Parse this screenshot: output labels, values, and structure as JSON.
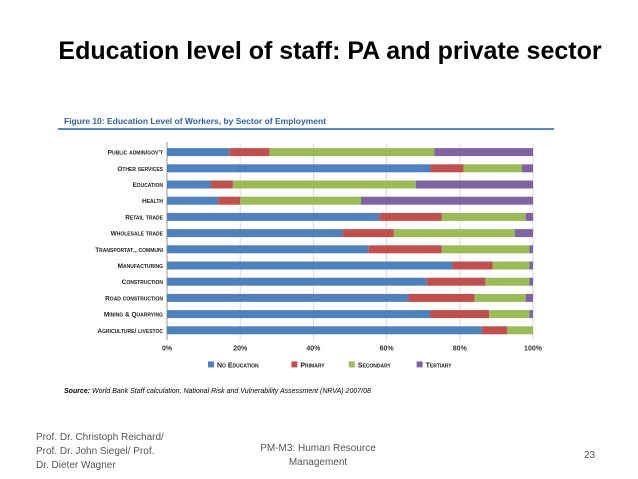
{
  "slide": {
    "title": "Education level of staff: PA and private sector",
    "footer_left": "Prof. Dr. Christoph Reichard/\nProf. Dr. John Siegel/  Prof.\nDr. Dieter Wagner",
    "footer_center": "PM-M3:  Human Resource\nManagement",
    "page_number": "23"
  },
  "figure": {
    "caption": "Figure 10: Education Level of Workers, by Sector of Employment",
    "source_label": "Source:",
    "source_text": "World Bank Staff calculation, National Risk and Vulnerability Assessment (NRVA) 2007/08"
  },
  "chart_data": {
    "type": "bar",
    "orientation": "horizontal",
    "stacked": true,
    "categories": [
      "Public admin/gov't",
      "Other services",
      "Education",
      "Health",
      "Retail trade",
      "Wholesale trade",
      "Transportat., communi",
      "Manufacturing",
      "Construction",
      "Road construction",
      "Mining & Quarrying",
      "Agriculture/ livestoc"
    ],
    "series": [
      {
        "name": "No Education",
        "color": "#4f81bd",
        "values": [
          17,
          72,
          12,
          14,
          58,
          48,
          55,
          78,
          71,
          66,
          72,
          86
        ]
      },
      {
        "name": "Primary",
        "color": "#c0504d",
        "values": [
          11,
          9,
          6,
          6,
          17,
          14,
          20,
          11,
          16,
          18,
          16,
          7
        ]
      },
      {
        "name": "Secondary",
        "color": "#9bbb59",
        "values": [
          45,
          16,
          50,
          33,
          23,
          33,
          24,
          10,
          12,
          14,
          11,
          7
        ]
      },
      {
        "name": "Tertiary",
        "color": "#8064a2",
        "values": [
          27,
          3,
          32,
          47,
          2,
          5,
          1,
          1,
          1,
          2,
          1,
          0
        ]
      }
    ],
    "xlim": [
      0,
      100
    ],
    "x_ticks": [
      "0%",
      "20%",
      "40%",
      "60%",
      "80%",
      "100%"
    ],
    "grid": true,
    "legend_position": "bottom"
  }
}
